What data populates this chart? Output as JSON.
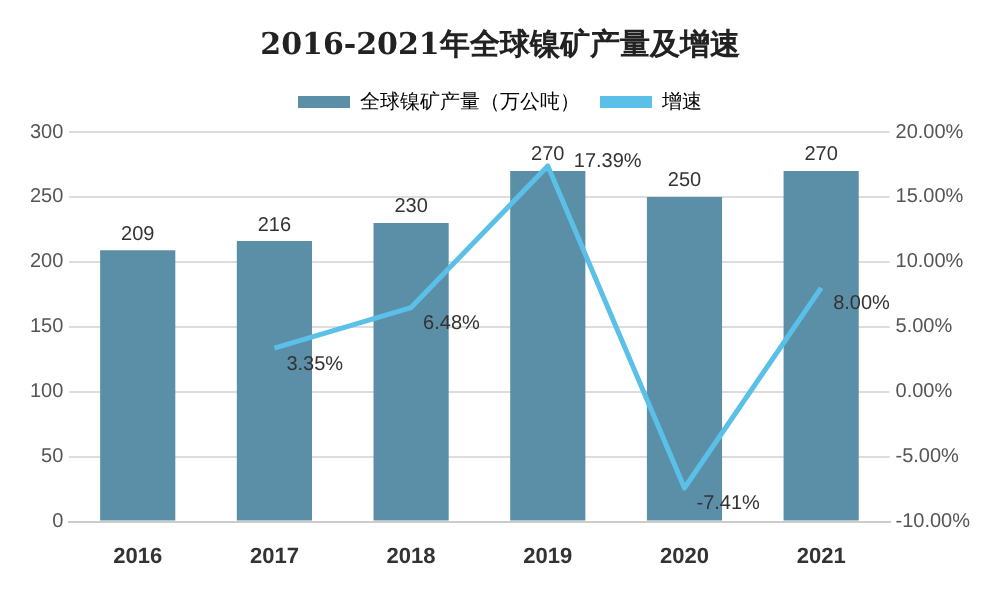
{
  "chart_data": {
    "type": "bar",
    "title": "2016-2021年全球镍矿产量及增速",
    "categories": [
      "2016",
      "2017",
      "2018",
      "2019",
      "2020",
      "2021"
    ],
    "series": [
      {
        "name": "全球镍矿产量（万公吨）",
        "color": "#5b8fa8",
        "values": [
          209,
          216,
          230,
          270,
          250,
          270
        ],
        "value_labels": [
          "209",
          "216",
          "230",
          "270",
          "250",
          "270"
        ]
      },
      {
        "name": "增速",
        "type": "line",
        "axis": "y2",
        "color": "#5bc0e8",
        "values": [
          null,
          3.35,
          6.48,
          17.39,
          -7.41,
          8.0
        ],
        "value_labels": [
          null,
          "3.35%",
          "6.48%",
          "17.39%",
          "-7.41%",
          "8.00%"
        ]
      }
    ],
    "ylim": [
      0,
      300
    ],
    "yticks": [
      0,
      50,
      100,
      150,
      200,
      250,
      300
    ],
    "y2lim": [
      -10,
      20
    ],
    "y2ticks": [
      {
        "value": -10,
        "label": "-10.00%"
      },
      {
        "value": -5,
        "label": "-5.00%"
      },
      {
        "value": 0,
        "label": "0.00%"
      },
      {
        "value": 5,
        "label": "5.00%"
      },
      {
        "value": 10,
        "label": "10.00%"
      },
      {
        "value": 15,
        "label": "15.00%"
      },
      {
        "value": 20,
        "label": "20.00%"
      }
    ],
    "grid": "y",
    "legend": "top",
    "marker": "none"
  }
}
